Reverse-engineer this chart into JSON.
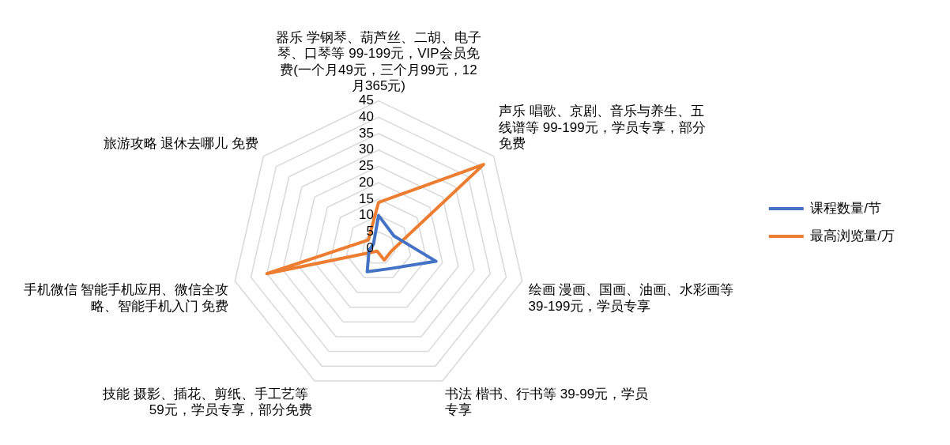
{
  "chart_data": {
    "type": "radar",
    "categories": [
      "器乐 学钢琴、葫芦丝、二胡、电子琴、口琴等 99-199元，VIP会员免费(一个月49元，三个月99元，12月365元)",
      "声乐 唱歌、京剧、音乐与养生、五线谱等 99-199元，学员专享，部分免费",
      "绘画 漫画、国画、油画、水彩画等 39-199元，学员专享",
      "书法 楷书、行书等 39-99元，学员专享",
      "技能 摄影、插花、剪纸、手工艺等 59元，学员专享，部分免费",
      "手机微信 智能手机应用、微信全攻略、智能手机入门 免费",
      "旅游攻略 退休去哪儿 免费"
    ],
    "series": [
      {
        "name": "课程数量/节",
        "color": "#4472c4",
        "values": [
          10,
          6,
          18,
          7,
          8,
          3,
          2
        ]
      },
      {
        "name": "最高浏览量/万",
        "color": "#ed7d31",
        "values": [
          14,
          41,
          4,
          4,
          1,
          35,
          4
        ]
      }
    ],
    "ylim": [
      0,
      45
    ],
    "yticks": [
      0,
      5,
      10,
      15,
      20,
      25,
      30,
      35,
      40,
      45
    ],
    "grid": true,
    "legend": "right",
    "marker": "none"
  }
}
